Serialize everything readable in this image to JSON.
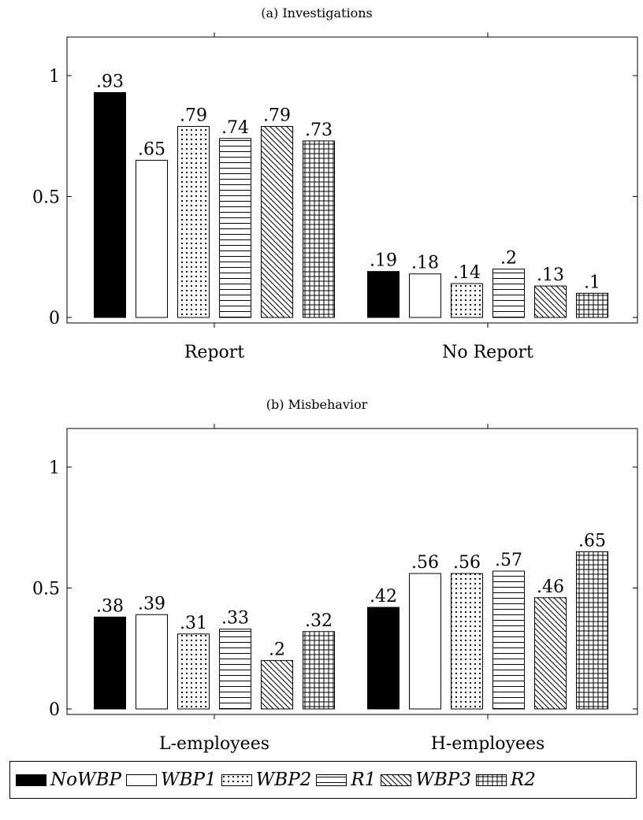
{
  "chart_data": [
    {
      "type": "bar",
      "title": "(a) Investigations",
      "categories": [
        "Report",
        "No Report"
      ],
      "ylim": [
        0,
        1.12
      ],
      "yticks": [
        "0",
        "0.5",
        "1"
      ],
      "series": [
        {
          "name": "NoWBP",
          "pattern": "solid",
          "values": [
            0.93,
            0.19
          ],
          "labels": [
            ".93",
            ".19"
          ]
        },
        {
          "name": "WBP1",
          "pattern": "empty",
          "values": [
            0.65,
            0.18
          ],
          "labels": [
            ".65",
            ".18"
          ]
        },
        {
          "name": "WBP2",
          "pattern": "dots",
          "values": [
            0.79,
            0.14
          ],
          "labels": [
            ".79",
            ".14"
          ]
        },
        {
          "name": "R1",
          "pattern": "hlines",
          "values": [
            0.74,
            0.2
          ],
          "labels": [
            ".74",
            ".2"
          ]
        },
        {
          "name": "WBP3",
          "pattern": "diag",
          "values": [
            0.79,
            0.13
          ],
          "labels": [
            ".79",
            ".13"
          ]
        },
        {
          "name": "R2",
          "pattern": "grid",
          "values": [
            0.73,
            0.1
          ],
          "labels": [
            ".73",
            ".1"
          ]
        }
      ]
    },
    {
      "type": "bar",
      "title": "(b) Misbehavior",
      "categories": [
        "L-employees",
        "H-employees"
      ],
      "ylim": [
        0,
        1.12
      ],
      "yticks": [
        "0",
        "0.5",
        "1"
      ],
      "series": [
        {
          "name": "NoWBP",
          "pattern": "solid",
          "values": [
            0.38,
            0.42
          ],
          "labels": [
            ".38",
            ".42"
          ]
        },
        {
          "name": "WBP1",
          "pattern": "empty",
          "values": [
            0.39,
            0.56
          ],
          "labels": [
            ".39",
            ".56"
          ]
        },
        {
          "name": "WBP2",
          "pattern": "dots",
          "values": [
            0.31,
            0.56
          ],
          "labels": [
            ".31",
            ".56"
          ]
        },
        {
          "name": "R1",
          "pattern": "hlines",
          "values": [
            0.33,
            0.57
          ],
          "labels": [
            ".33",
            ".57"
          ]
        },
        {
          "name": "WBP3",
          "pattern": "diag",
          "values": [
            0.2,
            0.46
          ],
          "labels": [
            ".2",
            ".46"
          ]
        },
        {
          "name": "R2",
          "pattern": "grid",
          "values": [
            0.32,
            0.65
          ],
          "labels": [
            ".32",
            ".65"
          ]
        }
      ]
    }
  ],
  "legend": {
    "placement": "bottom",
    "items": [
      {
        "label": "NoWBP",
        "pattern": "solid"
      },
      {
        "label": "WBP1",
        "pattern": "empty"
      },
      {
        "label": "WBP2",
        "pattern": "dots"
      },
      {
        "label": "R1",
        "pattern": "hlines"
      },
      {
        "label": "WBP3",
        "pattern": "diag"
      },
      {
        "label": "R2",
        "pattern": "grid"
      }
    ]
  },
  "colors": {
    "ink": "#000000",
    "background": "#ffffff"
  }
}
